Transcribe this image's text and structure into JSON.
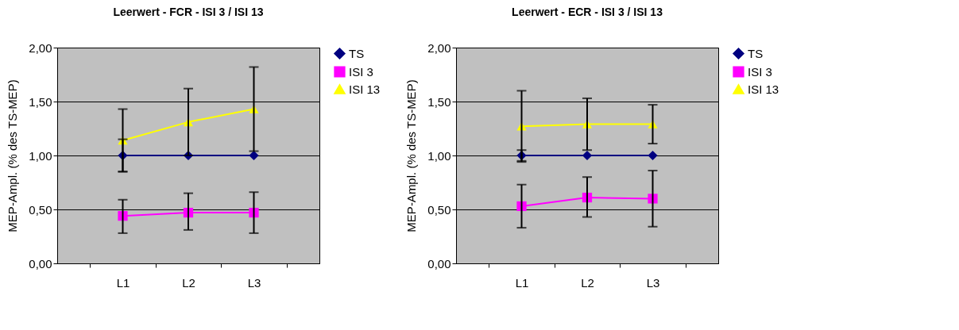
{
  "chart_data": [
    {
      "type": "line",
      "title": "Leerwert  -  FCR  -  ISI 3 / ISI 13",
      "ylabel": "MEP-Ampl. (% des TS-MEP)",
      "categories": [
        "L1",
        "L2",
        "L3"
      ],
      "series": [
        {
          "name": "TS",
          "color": "#000080",
          "marker": "diamond",
          "values": [
            1.0,
            1.0,
            1.0
          ],
          "errors": [
            0.15,
            null,
            null
          ]
        },
        {
          "name": "ISI 3",
          "color": "#ff00ff",
          "marker": "square",
          "values": [
            0.44,
            0.47,
            0.47
          ],
          "errors": [
            [
              0.28,
              0.59
            ],
            [
              0.31,
              0.65
            ],
            [
              0.28,
              0.66
            ]
          ]
        },
        {
          "name": "ISI 13",
          "color": "#ffff00",
          "marker": "triangle",
          "values": [
            1.14,
            1.31,
            1.43
          ],
          "errors": [
            [
              0.85,
              1.43
            ],
            [
              1.0,
              1.62
            ],
            [
              1.04,
              1.82
            ]
          ]
        }
      ],
      "ylim": [
        0,
        2
      ],
      "yticks": [
        {
          "value": 0,
          "label": "0,00"
        },
        {
          "value": 0.5,
          "label": "0,50"
        },
        {
          "value": 1,
          "label": "1,00"
        },
        {
          "value": 1.5,
          "label": "1,50"
        },
        {
          "value": 2,
          "label": "2,00"
        }
      ],
      "grid": "y",
      "legend": "right"
    },
    {
      "type": "line",
      "title": "Leerwert  -  ECR  -  ISI 3 / ISI 13",
      "ylabel": "MEP-Ampl. (% des TS-MEP)",
      "categories": [
        "L1",
        "L2",
        "L3"
      ],
      "series": [
        {
          "name": "TS",
          "color": "#000080",
          "marker": "diamond",
          "values": [
            1.0,
            1.0,
            1.0
          ],
          "errors": [
            [
              0.95,
              1.05
            ],
            null,
            null
          ]
        },
        {
          "name": "ISI 3",
          "color": "#ff00ff",
          "marker": "square",
          "values": [
            0.53,
            0.61,
            0.6
          ],
          "errors": [
            [
              0.33,
              0.73
            ],
            [
              0.43,
              0.8
            ],
            [
              0.34,
              0.86
            ]
          ]
        },
        {
          "name": "ISI 13",
          "color": "#ffff00",
          "marker": "triangle",
          "values": [
            1.27,
            1.29,
            1.29
          ],
          "errors": [
            [
              0.94,
              1.6
            ],
            [
              1.05,
              1.53
            ],
            [
              1.11,
              1.47
            ]
          ]
        }
      ],
      "ylim": [
        0,
        2
      ],
      "yticks": [
        {
          "value": 0,
          "label": "0,00"
        },
        {
          "value": 0.5,
          "label": "0,50"
        },
        {
          "value": 1,
          "label": "1,00"
        },
        {
          "value": 1.5,
          "label": "1,50"
        },
        {
          "value": 2,
          "label": "2,00"
        }
      ],
      "grid": "y",
      "legend": "right"
    }
  ]
}
